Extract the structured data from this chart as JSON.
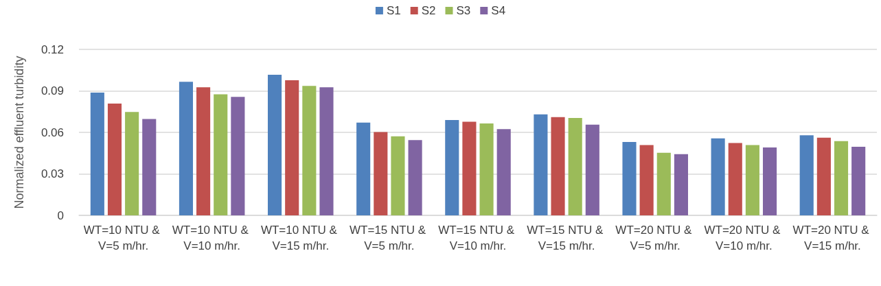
{
  "chart_data": {
    "type": "bar",
    "ylabel": "Normalized effluent turbidity",
    "categories": [
      "WT=10 NTU & V=5 m/hr.",
      "WT=10 NTU & V=10 m/hr.",
      "WT=10 NTU & V=15 m/hr.",
      "WT=15 NTU & V=5 m/hr.",
      "WT=15 NTU & V=10 m/hr.",
      "WT=15 NTU & V=15 m/hr.",
      "WT=20 NTU & V=5 m/hr.",
      "WT=20 NTU & V=10 m/hr.",
      "WT=20 NTU & V=15 m/hr."
    ],
    "series": [
      {
        "name": "S1",
        "color": "#4f81bd",
        "values": [
          0.0887,
          0.0966,
          0.1017,
          0.0671,
          0.0689,
          0.073,
          0.0531,
          0.0557,
          0.0579
        ]
      },
      {
        "name": "S2",
        "color": "#c0504d",
        "values": [
          0.0808,
          0.0926,
          0.0977,
          0.0603,
          0.0677,
          0.071,
          0.0508,
          0.0523,
          0.0562
        ]
      },
      {
        "name": "S3",
        "color": "#9bbb59",
        "values": [
          0.0747,
          0.0875,
          0.0936,
          0.0572,
          0.0664,
          0.0704,
          0.0452,
          0.0508,
          0.0537
        ]
      },
      {
        "name": "S4",
        "color": "#8064a2",
        "values": [
          0.0697,
          0.0857,
          0.0926,
          0.0544,
          0.0623,
          0.0656,
          0.0442,
          0.0491,
          0.0496
        ]
      }
    ],
    "ylim": [
      0,
      0.12
    ],
    "yticks": [
      0,
      0.03,
      0.06,
      0.09,
      0.12
    ],
    "grid": "y",
    "legend": "top"
  }
}
